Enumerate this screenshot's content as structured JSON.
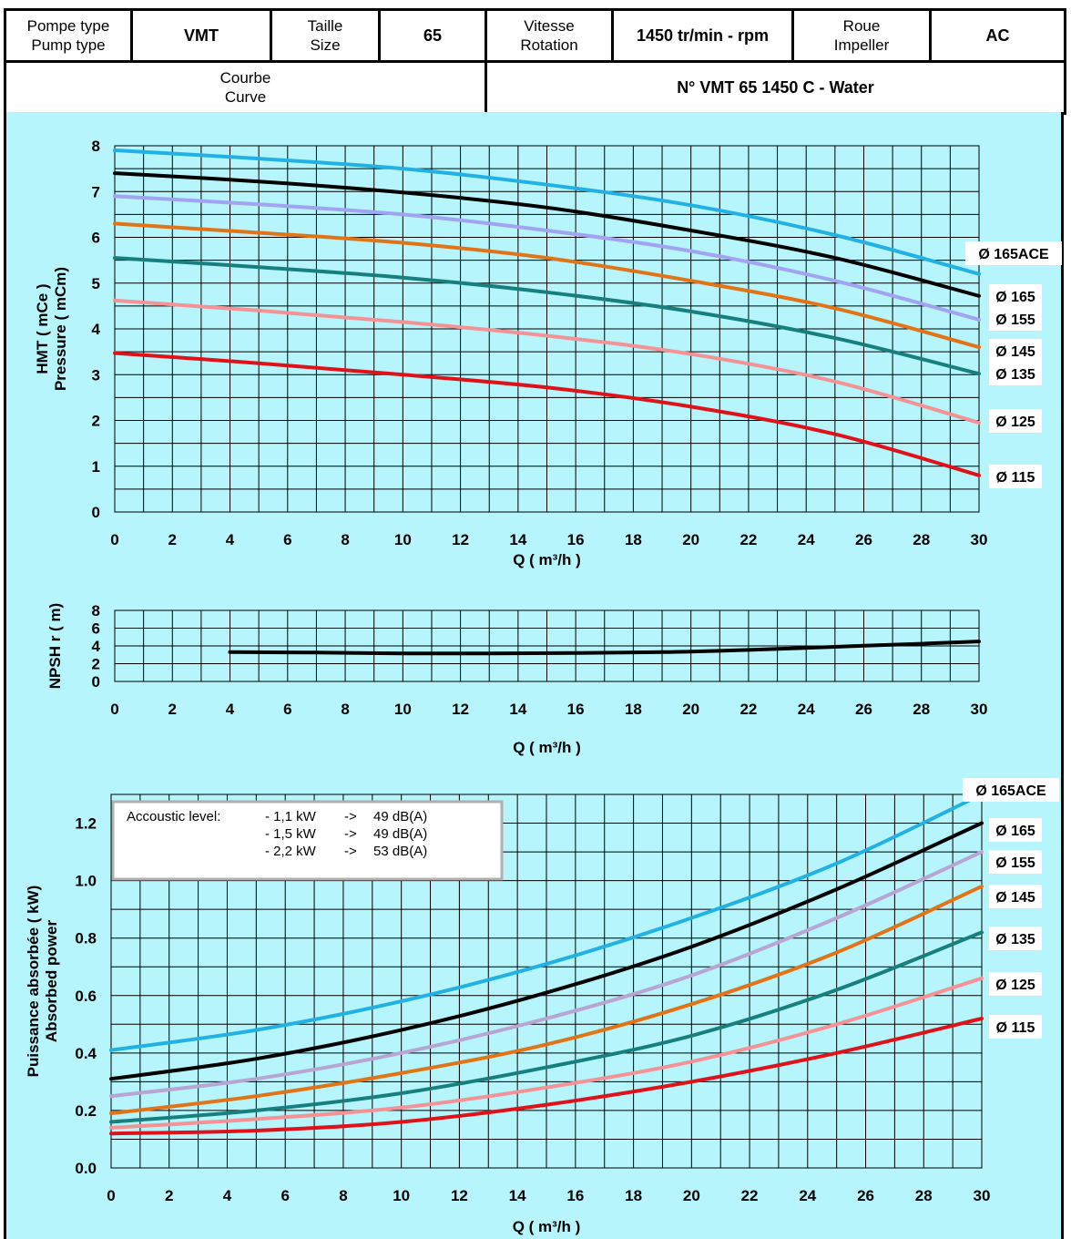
{
  "header": {
    "pump_type_label_fr": "Pompe type",
    "pump_type_label_en": "Pump type",
    "pump_type_value": "VMT",
    "size_label_fr": "Taille",
    "size_label_en": "Size",
    "size_value": "65",
    "speed_label_fr": "Vitesse",
    "speed_label_en": "Rotation",
    "speed_value": "1450 tr/min - rpm",
    "impeller_label_fr": "Roue",
    "impeller_label_en": "Impeller",
    "impeller_value": "AC",
    "curve_label_fr": "Courbe",
    "curve_label_en": "Curve",
    "curve_value": "N° VMT 65 1450 C - Water"
  },
  "colors": {
    "background": "#b5f5fb",
    "d165ACE": "#22b1e4",
    "d165": "#000000",
    "d155": "#a2a3f2",
    "d145": "#e27418",
    "d135": "#17807e",
    "d125": "#f49295",
    "d115": "#e01219",
    "power_d155": "#b8a5d4"
  },
  "chart_data": [
    {
      "type": "line",
      "ylabel_fr": "HMT ( mCe )",
      "ylabel_en": "Pressure ( mCm)",
      "xlabel": "Q ( m³/h )",
      "xlim": [
        0,
        30
      ],
      "ylim": [
        0,
        8
      ],
      "x_ticks": [
        0,
        2,
        4,
        6,
        8,
        10,
        12,
        14,
        16,
        18,
        20,
        22,
        24,
        26,
        28,
        30
      ],
      "y_ticks": [
        0,
        1,
        2,
        3,
        4,
        5,
        6,
        7,
        8
      ],
      "grid": true,
      "legend": "right",
      "series": [
        {
          "name": "Ø 165ACE",
          "x": [
            0,
            5,
            10,
            15,
            20,
            25,
            30
          ],
          "y": [
            7.9,
            7.72,
            7.5,
            7.15,
            6.7,
            6.05,
            5.2
          ]
        },
        {
          "name": "Ø 165",
          "x": [
            0,
            5,
            10,
            15,
            20,
            25,
            30
          ],
          "y": [
            7.4,
            7.22,
            6.98,
            6.65,
            6.15,
            5.55,
            4.72
          ]
        },
        {
          "name": "Ø 155",
          "x": [
            0,
            5,
            10,
            15,
            20,
            25,
            30
          ],
          "y": [
            6.9,
            6.72,
            6.5,
            6.15,
            5.7,
            5.05,
            4.2
          ]
        },
        {
          "name": "Ø 145",
          "x": [
            0,
            5,
            10,
            15,
            20,
            25,
            30
          ],
          "y": [
            6.3,
            6.1,
            5.88,
            5.55,
            5.05,
            4.45,
            3.6
          ]
        },
        {
          "name": "Ø 135",
          "x": [
            0,
            5,
            10,
            15,
            20,
            25,
            30
          ],
          "y": [
            5.55,
            5.35,
            5.12,
            4.8,
            4.38,
            3.8,
            3.02
          ]
        },
        {
          "name": "Ø 125",
          "x": [
            0,
            5,
            10,
            15,
            20,
            25,
            30
          ],
          "y": [
            4.62,
            4.4,
            4.15,
            3.85,
            3.45,
            2.85,
            1.95
          ]
        },
        {
          "name": "Ø 115",
          "x": [
            0,
            5,
            10,
            15,
            20,
            25,
            30
          ],
          "y": [
            3.47,
            3.25,
            3.0,
            2.72,
            2.3,
            1.7,
            0.8
          ]
        }
      ]
    },
    {
      "type": "line",
      "ylabel": "NPSH r ( m)",
      "xlabel": "Q ( m³/h )",
      "xlim": [
        0,
        30
      ],
      "ylim": [
        0,
        8
      ],
      "x_ticks": [
        0,
        2,
        4,
        6,
        8,
        10,
        12,
        14,
        16,
        18,
        20,
        22,
        24,
        26,
        28,
        30
      ],
      "y_ticks": [
        0,
        2,
        4,
        6,
        8
      ],
      "grid": true,
      "series": [
        {
          "x": [
            4,
            7,
            10,
            13,
            16,
            19,
            22,
            25,
            28,
            30
          ],
          "y": [
            3.3,
            3.25,
            3.15,
            3.15,
            3.2,
            3.3,
            3.55,
            3.9,
            4.25,
            4.5
          ]
        }
      ]
    },
    {
      "type": "line",
      "ylabel_fr": "Puissance absorbée ( kW)",
      "ylabel_en": "Absorbed power",
      "xlabel": "Q ( m³/h )",
      "xlim": [
        0,
        30
      ],
      "ylim": [
        0,
        1.3
      ],
      "x_ticks": [
        0,
        2,
        4,
        6,
        8,
        10,
        12,
        14,
        16,
        18,
        20,
        22,
        24,
        26,
        28,
        30
      ],
      "y_ticks": [
        "0.0",
        "0.2",
        "0.4",
        "0.6",
        "0.8",
        "1.0",
        "1.2"
      ],
      "grid": true,
      "legend": "right",
      "annotation": {
        "title": "Accoustic level:",
        "rows": [
          {
            "power": "- 1,1 kW",
            "arrow": "->",
            "level": "49 dB(A)"
          },
          {
            "power": "- 1,5 kW",
            "arrow": "->",
            "level": "49 dB(A)"
          },
          {
            "power": "- 2,2 kW",
            "arrow": "->",
            "level": "53 dB(A)"
          }
        ]
      },
      "series": [
        {
          "name": "Ø 165ACE",
          "x": [
            0,
            5,
            10,
            15,
            20,
            25,
            30
          ],
          "y": [
            0.41,
            0.48,
            0.58,
            0.71,
            0.87,
            1.06,
            1.3
          ]
        },
        {
          "name": "Ø 165",
          "x": [
            0,
            5,
            10,
            15,
            20,
            25,
            30
          ],
          "y": [
            0.31,
            0.38,
            0.48,
            0.61,
            0.77,
            0.97,
            1.2
          ]
        },
        {
          "name": "Ø 155",
          "x": [
            0,
            5,
            10,
            15,
            20,
            25,
            30
          ],
          "y": [
            0.25,
            0.31,
            0.4,
            0.52,
            0.67,
            0.87,
            1.1
          ]
        },
        {
          "name": "Ø 145",
          "x": [
            0,
            5,
            10,
            15,
            20,
            25,
            30
          ],
          "y": [
            0.19,
            0.25,
            0.33,
            0.43,
            0.57,
            0.75,
            0.98
          ]
        },
        {
          "name": "Ø 135",
          "x": [
            0,
            5,
            10,
            15,
            20,
            25,
            30
          ],
          "y": [
            0.16,
            0.2,
            0.26,
            0.35,
            0.46,
            0.62,
            0.82
          ]
        },
        {
          "name": "Ø 125",
          "x": [
            0,
            5,
            10,
            15,
            20,
            25,
            30
          ],
          "y": [
            0.14,
            0.17,
            0.21,
            0.28,
            0.37,
            0.5,
            0.66
          ]
        },
        {
          "name": "Ø 115",
          "x": [
            0,
            5,
            10,
            15,
            20,
            25,
            30
          ],
          "y": [
            0.12,
            0.13,
            0.16,
            0.22,
            0.3,
            0.4,
            0.52
          ]
        }
      ]
    }
  ]
}
